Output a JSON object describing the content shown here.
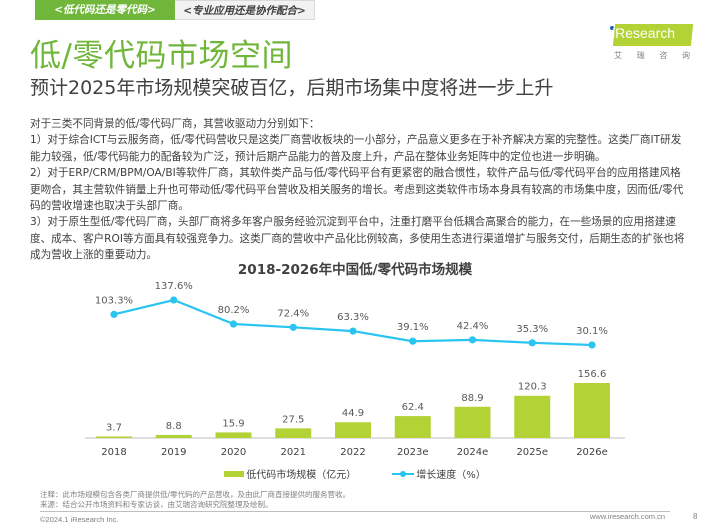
{
  "tabs": [
    {
      "label": "<低代码还是零代码>",
      "active": true
    },
    {
      "label": "<专业应用还是协作配合>",
      "active": false
    }
  ],
  "header": {
    "title": "低/零代码市场空间",
    "subtitle": "预计2025年市场规模突破百亿，后期市场集中度将进一步上升"
  },
  "logo": {
    "brand": "iResearch",
    "subtitle_chars": [
      "艾",
      "瑞",
      "咨",
      "询"
    ]
  },
  "body_paragraphs": [
    "对于三类不同背景的低/零代码厂商，其营收驱动力分别如下：",
    "1）对于综合ICT与云服务商，低/零代码营收只是这类厂商营收板块的一小部分，产品意义更多在于补齐解决方案的完整性。这类厂商IT研发能力较强，低/零代码能力的配备较为广泛，预计后期产品能力的普及度上升，产品在整体业务矩阵中的定位也进一步明确。",
    "2）对于ERP/CRM/BPM/OA/BI等软件厂商，其软件类产品与低/零代码平台有更紧密的融合惯性，软件产品与低/零代码平台的应用搭建风格更吻合，其主营软件销量上升也可带动低/零代码平台营收及相关服务的增长。考虑到这类软件市场本身具有较高的市场集中度，因而低/零代码的营收增速也取决于头部厂商。",
    "3）对于原生型低/零代码厂商，头部厂商将多年客户服务经验沉淀到平台中，注重打磨平台低耦合高聚合的能力，在一些场景的应用搭建速度、成本、客户ROI等方面具有较强竞争力。这类厂商的营收中产品化比例较高，多使用生态进行渠道增扩与服务交付，后期生态的扩张也将成为营收上涨的重要动力。"
  ],
  "chart_data": {
    "type": "bar+line",
    "title": "2018-2026年中国低/零代码市场规模",
    "categories": [
      "2018",
      "2019",
      "2020",
      "2021",
      "2022",
      "2023e",
      "2024e",
      "2025e",
      "2026e"
    ],
    "series": [
      {
        "name": "低代码市场规模（亿元）",
        "type": "bar",
        "color": "#b2d235",
        "values": [
          3.7,
          8.8,
          15.9,
          27.5,
          44.9,
          62.4,
          88.9,
          120.3,
          156.6
        ],
        "labels": [
          "3.7",
          "8.8",
          "15.9",
          "27.5",
          "44.9",
          "62.4",
          "88.9",
          "120.3",
          "156.6"
        ]
      },
      {
        "name": "增长速度（%）",
        "type": "line",
        "color": "#29c4ef",
        "values": [
          103.3,
          137.6,
          80.2,
          72.4,
          63.3,
          39.1,
          42.4,
          35.3,
          30.1
        ],
        "labels": [
          "103.3%",
          "137.6%",
          "80.2%",
          "72.4%",
          "63.3%",
          "39.1%",
          "42.4%",
          "35.3%",
          "30.1%"
        ]
      }
    ],
    "legend": "bottom",
    "grid": false
  },
  "footer": {
    "note": "注释：此市场规模包含各类厂商提供低/零代码的产品营收，及由此厂商直接提供的服务营收。",
    "source": "来源：结合公开市场资料和专家访谈，由艾瑞咨询研究院整理及绘制。",
    "copyright": "©2024.1 iResearch Inc.",
    "website": "www.iresearch.com.cn",
    "page": "8"
  },
  "colors": {
    "brand_green": "#6fb63a",
    "bar": "#b2d235",
    "line": "#29c4ef"
  }
}
